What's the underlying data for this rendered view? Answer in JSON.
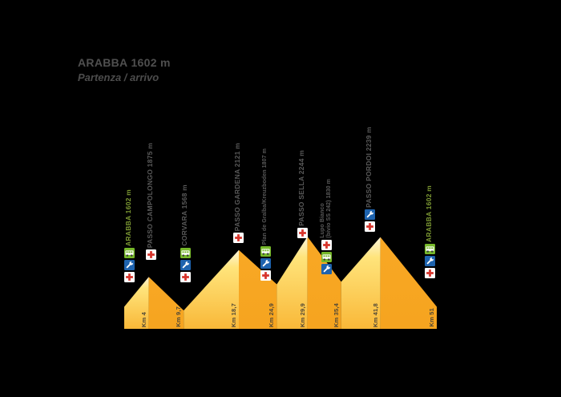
{
  "title": {
    "name": "ARABBA",
    "elevation": "1602 m",
    "subtitle": "Partenza / arrivo"
  },
  "colors": {
    "background": "#000000",
    "label_text": "#5a5a5a",
    "highlight_text": "#7d9a33",
    "km_text": "#4d4637",
    "climb_apex": "#FCF6DC",
    "climb_yellow": "#FFE47B",
    "climb_base": "#F9B838",
    "descent_orange": "#F6A41F",
    "medical_red": "#D7352C",
    "mechanic_blue": "#1E63AE",
    "shuttle_green": "#76B82A"
  },
  "icons": {
    "cross": "medical-cross-icon",
    "wrench": "mechanic-wrench-icon",
    "bus": "shuttle-bus-icon"
  },
  "chart_data": {
    "type": "area",
    "title": "ARABBA 1602 m — Partenza / arrivo",
    "x_unit": "km",
    "xlim": [
      0,
      51
    ],
    "elevation_base_m": 1400,
    "grid": false,
    "legend": "none",
    "profile_points": [
      {
        "km": 0,
        "ele_m": 1602,
        "name": "Arabba"
      },
      {
        "km": 4,
        "ele_m": 1875,
        "name": "Passo Campolongo"
      },
      {
        "km": 9.7,
        "ele_m": 1568,
        "name": "Corvara"
      },
      {
        "km": 18.7,
        "ele_m": 2121,
        "name": "Passo Gardena"
      },
      {
        "km": 24.9,
        "ele_m": 1807,
        "name": "Plan de Gralba"
      },
      {
        "km": 29.9,
        "ele_m": 2244,
        "name": "Passo Sella"
      },
      {
        "km": 35.4,
        "ele_m": 1830,
        "name": "Lupo Bianco"
      },
      {
        "km": 41.8,
        "ele_m": 2239,
        "name": "Passo Pordoi"
      },
      {
        "km": 51,
        "ele_m": 1602,
        "name": "Arabba"
      }
    ],
    "km_markers": [
      {
        "km": 4,
        "label": "Km 4"
      },
      {
        "km": 9.7,
        "label": "Km 9,7"
      },
      {
        "km": 18.7,
        "label": "Km 18,7"
      },
      {
        "km": 24.9,
        "label": "Km 24,9"
      },
      {
        "km": 29.9,
        "label": "Km 29,9"
      },
      {
        "km": 35.4,
        "label": "Km 35,4"
      },
      {
        "km": 41.8,
        "label": "Km 41,8"
      },
      {
        "km": 51,
        "label": "Km 51"
      }
    ],
    "segment_style": "climbs: light yellow gradient (white at apex); descents: solid orange"
  },
  "waypoints": [
    {
      "km": 0,
      "label": "ARABBA 1602 m",
      "highlight": true,
      "small": false,
      "icons": [
        "bus",
        "wrench",
        "cross"
      ]
    },
    {
      "km": 4,
      "label": "PASSO CAMPOLONGO 1875 m",
      "highlight": false,
      "small": false,
      "icons": [
        "cross"
      ]
    },
    {
      "km": 9.7,
      "label": "CORVARA 1568 m",
      "highlight": false,
      "small": false,
      "icons": [
        "bus",
        "wrench",
        "cross"
      ]
    },
    {
      "km": 18.7,
      "label": "PASSO GARDENA 2121 m",
      "highlight": false,
      "small": false,
      "icons": [
        "cross"
      ]
    },
    {
      "km": 24.9,
      "label": "Plan de Gralba/Kreuzboden 1807 m",
      "highlight": false,
      "small": true,
      "icons": [
        "bus",
        "wrench",
        "cross"
      ]
    },
    {
      "km": 29.9,
      "label": "PASSO SELLA 2244 m",
      "highlight": false,
      "small": false,
      "icons": [
        "cross"
      ]
    },
    {
      "km": 35.4,
      "lines": [
        "Lupo Bianco",
        "(bivio SS 242) 1830 m"
      ],
      "highlight": false,
      "small": true,
      "icons": [
        "cross",
        "bus",
        "wrench"
      ]
    },
    {
      "km": 41.8,
      "label": "PASSO PORDOI 2239 m",
      "highlight": false,
      "small": false,
      "icons": [
        "wrench",
        "cross"
      ]
    },
    {
      "km": 51,
      "label": "ARABBA 1602 m",
      "highlight": true,
      "small": false,
      "icons": [
        "bus",
        "wrench",
        "cross"
      ]
    }
  ]
}
